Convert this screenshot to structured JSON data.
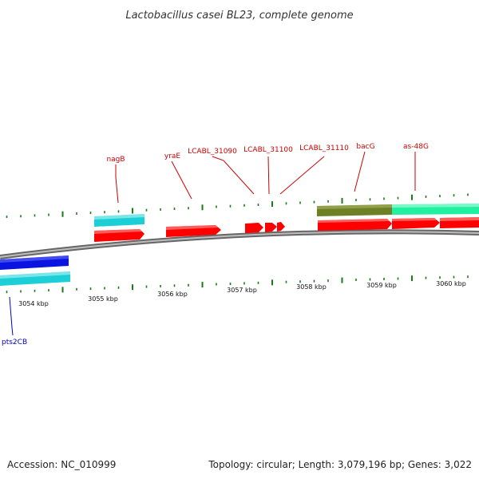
{
  "title": "Lactobacillus casei BL23, complete genome",
  "footer": {
    "accession": "Accession: NC_010999",
    "summary": "Topology: circular; Length: 3,079,196 bp; Genes: 3,022"
  },
  "colors": {
    "backbone": "#808080",
    "tick": "#1a7a1a",
    "gene_red": "#ff0000",
    "gene_cyan": "#1ccfd6",
    "gene_blue": "#0a14e0",
    "gene_olive": "#6f7f25",
    "gene_green": "#20f0a0",
    "label_red": "#cc0000",
    "label_blue": "#0000cc"
  },
  "scale_labels": [
    "3054 kbp",
    "3055 kbp",
    "3056 kbp",
    "3057 kbp",
    "3058 kbp",
    "3059 kbp",
    "3060 kbp"
  ],
  "gene_labels": [
    {
      "name": "pts2CB",
      "color": "blue"
    },
    {
      "name": "nagB",
      "color": "red"
    },
    {
      "name": "yraE",
      "color": "red"
    },
    {
      "name": "LCABL_31090",
      "color": "red"
    },
    {
      "name": "LCABL_31100",
      "color": "red"
    },
    {
      "name": "LCABL_31110",
      "color": "red"
    },
    {
      "name": "bacG",
      "color": "red"
    },
    {
      "name": "as-48G",
      "color": "red"
    }
  ]
}
